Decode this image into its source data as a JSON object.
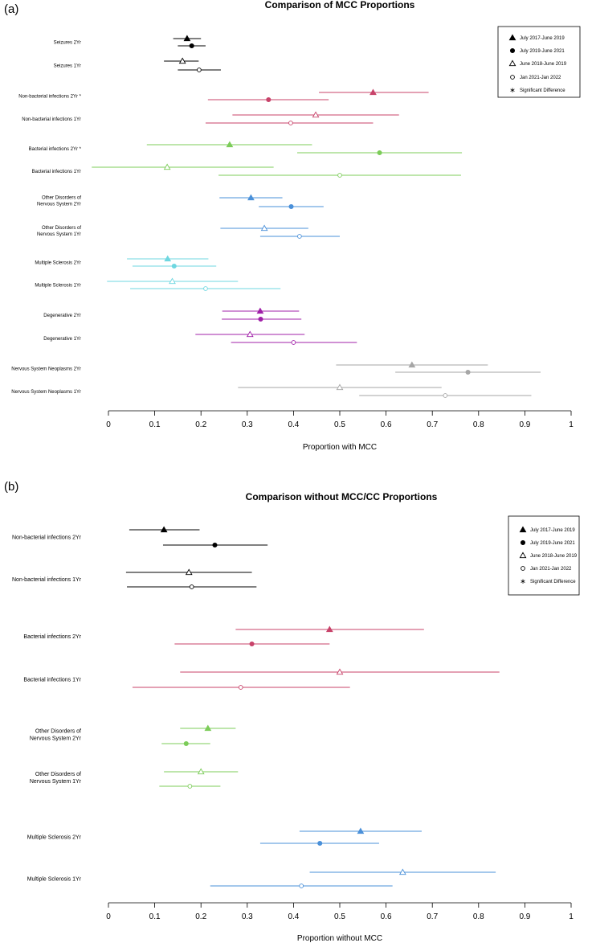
{
  "legend": {
    "entries": [
      {
        "label": "July 2017-June 2019",
        "marker": "filled-triangle"
      },
      {
        "label": "July 2019-June 2021",
        "marker": "filled-circle"
      },
      {
        "label": "June 2018-June 2019",
        "marker": "open-triangle"
      },
      {
        "label": "Jan 2021-Jan 2022",
        "marker": "open-circle"
      },
      {
        "label": "Significant Difference",
        "marker": "asterisk"
      }
    ]
  },
  "chart_data": [
    {
      "panel_label": "(a)",
      "type": "scatter",
      "title": "Comparison of MCC Proportions",
      "xlabel": "Proportion with MCC",
      "xlim": [
        0,
        1
      ],
      "xticks": [
        "0",
        "0.1",
        "0.2",
        "0.3",
        "0.4",
        "0.5",
        "0.6",
        "0.7",
        "0.8",
        "0.9",
        "1"
      ],
      "groups": [
        {
          "name": "Seizures",
          "color": "#000000",
          "rows": [
            {
              "label": "Seizures 2Yr",
              "points": [
                {
                  "series": "July 2017-June 2019",
                  "marker": "filled-triangle",
                  "estimate": 0.17,
                  "ci": [
                    0.14,
                    0.2
                  ]
                },
                {
                  "series": "July 2019-June 2021",
                  "marker": "filled-circle",
                  "estimate": 0.18,
                  "ci": [
                    0.15,
                    0.21
                  ]
                }
              ]
            },
            {
              "label": "Seizures 1Yr",
              "points": [
                {
                  "series": "June 2018-June 2019",
                  "marker": "open-triangle",
                  "estimate": 0.16,
                  "ci": [
                    0.12,
                    0.195
                  ]
                },
                {
                  "series": "Jan 2021-Jan 2022",
                  "marker": "open-circle",
                  "estimate": 0.196,
                  "ci": [
                    0.15,
                    0.243
                  ]
                }
              ]
            }
          ]
        },
        {
          "name": "Non-bacterial infections",
          "color": "#c8436a",
          "rows": [
            {
              "label": "Non-bacterial infections 2Yr *",
              "points": [
                {
                  "series": "July 2017-June 2019",
                  "marker": "filled-triangle",
                  "estimate": 0.572,
                  "ci": [
                    0.455,
                    0.692
                  ]
                },
                {
                  "series": "July 2019-June 2021",
                  "marker": "filled-circle",
                  "estimate": 0.346,
                  "ci": [
                    0.215,
                    0.476
                  ]
                }
              ]
            },
            {
              "label": "Non-bacterial infections 1Yr",
              "points": [
                {
                  "series": "June 2018-June 2019",
                  "marker": "open-triangle",
                  "estimate": 0.448,
                  "ci": [
                    0.268,
                    0.628
                  ]
                },
                {
                  "series": "Jan 2021-Jan 2022",
                  "marker": "open-circle",
                  "estimate": 0.394,
                  "ci": [
                    0.21,
                    0.572
                  ]
                }
              ]
            }
          ]
        },
        {
          "name": "Bacterial infections",
          "color": "#7ccc59",
          "rows": [
            {
              "label": "Bacterial infections 2Yr *",
              "points": [
                {
                  "series": "July 2017-June 2019",
                  "marker": "filled-triangle",
                  "estimate": 0.262,
                  "ci": [
                    0.083,
                    0.44
                  ]
                },
                {
                  "series": "July 2019-June 2021",
                  "marker": "filled-circle",
                  "estimate": 0.586,
                  "ci": [
                    0.408,
                    0.764
                  ]
                }
              ]
            },
            {
              "label": "Bacterial infections 1Yr",
              "points": [
                {
                  "series": "June 2018-June 2019",
                  "marker": "open-triangle",
                  "estimate": 0.127,
                  "ci": [
                    -0.036,
                    0.357
                  ]
                },
                {
                  "series": "Jan 2021-Jan 2022",
                  "marker": "open-circle",
                  "estimate": 0.5,
                  "ci": [
                    0.238,
                    0.762
                  ]
                }
              ]
            }
          ]
        },
        {
          "name": "Other Disorders of Nervous System",
          "color": "#4a90d9",
          "rows": [
            {
              "label": "Other Disorders of Nervous System 2Yr",
              "points": [
                {
                  "series": "July 2017-June 2019",
                  "marker": "filled-triangle",
                  "estimate": 0.308,
                  "ci": [
                    0.24,
                    0.376
                  ]
                },
                {
                  "series": "July 2019-June 2021",
                  "marker": "filled-circle",
                  "estimate": 0.395,
                  "ci": [
                    0.325,
                    0.465
                  ]
                }
              ]
            },
            {
              "label": "Other Disorders of Nervous System 1Yr",
              "points": [
                {
                  "series": "June 2018-June 2019",
                  "marker": "open-triangle",
                  "estimate": 0.337,
                  "ci": [
                    0.242,
                    0.432
                  ]
                },
                {
                  "series": "Jan 2021-Jan 2022",
                  "marker": "open-circle",
                  "estimate": 0.413,
                  "ci": [
                    0.328,
                    0.5
                  ]
                }
              ]
            }
          ]
        },
        {
          "name": "Multiple Sclerosis",
          "color": "#6fd7e0",
          "rows": [
            {
              "label": "Multiple Sclerosis 2Yr",
              "points": [
                {
                  "series": "July 2017-June 2019",
                  "marker": "filled-triangle",
                  "estimate": 0.128,
                  "ci": [
                    0.04,
                    0.216
                  ]
                },
                {
                  "series": "July 2019-June 2021",
                  "marker": "filled-circle",
                  "estimate": 0.142,
                  "ci": [
                    0.052,
                    0.233
                  ]
                }
              ]
            },
            {
              "label": "Multiple Sclerosis 1Yr",
              "points": [
                {
                  "series": "June 2018-June 2019",
                  "marker": "open-triangle",
                  "estimate": 0.138,
                  "ci": [
                    -0.003,
                    0.28
                  ]
                },
                {
                  "series": "Jan 2021-Jan 2022",
                  "marker": "open-circle",
                  "estimate": 0.21,
                  "ci": [
                    0.047,
                    0.372
                  ]
                }
              ]
            }
          ]
        },
        {
          "name": "Degenerative",
          "color": "#a020a8",
          "rows": [
            {
              "label": "Degenerative 2Yr",
              "points": [
                {
                  "series": "July 2017-June 2019",
                  "marker": "filled-triangle",
                  "estimate": 0.328,
                  "ci": [
                    0.246,
                    0.412
                  ]
                },
                {
                  "series": "July 2019-June 2021",
                  "marker": "filled-circle",
                  "estimate": 0.329,
                  "ci": [
                    0.245,
                    0.417
                  ]
                }
              ]
            },
            {
              "label": "Degenerative 1Yr",
              "points": [
                {
                  "series": "June 2018-June 2019",
                  "marker": "open-triangle",
                  "estimate": 0.306,
                  "ci": [
                    0.188,
                    0.424
                  ]
                },
                {
                  "series": "Jan 2021-Jan 2022",
                  "marker": "open-circle",
                  "estimate": 0.4,
                  "ci": [
                    0.265,
                    0.537
                  ]
                }
              ]
            }
          ]
        },
        {
          "name": "Nervous System Neoplasms",
          "color": "#a6a6a6",
          "rows": [
            {
              "label": "Nervous System Neoplasms 2Yr",
              "points": [
                {
                  "series": "July 2017-June 2019",
                  "marker": "filled-triangle",
                  "estimate": 0.656,
                  "ci": [
                    0.492,
                    0.82
                  ]
                },
                {
                  "series": "July 2019-June 2021",
                  "marker": "filled-circle",
                  "estimate": 0.777,
                  "ci": [
                    0.62,
                    0.934
                  ]
                }
              ]
            },
            {
              "label": "Nervous System Neoplasms 1Yr",
              "points": [
                {
                  "series": "June 2018-June 2019",
                  "marker": "open-triangle",
                  "estimate": 0.5,
                  "ci": [
                    0.28,
                    0.72
                  ]
                },
                {
                  "series": "Jan 2021-Jan 2022",
                  "marker": "open-circle",
                  "estimate": 0.728,
                  "ci": [
                    0.542,
                    0.914
                  ]
                }
              ]
            }
          ]
        }
      ]
    },
    {
      "panel_label": "(b)",
      "type": "scatter",
      "title": "Comparison without MCC/CC Proportions",
      "xlabel": "Proportion without MCC",
      "xlim": [
        0,
        1
      ],
      "xticks": [
        "0",
        "0.1",
        "0.2",
        "0.3",
        "0.4",
        "0.5",
        "0.6",
        "0.7",
        "0.8",
        "0.9",
        "1"
      ],
      "groups": [
        {
          "name": "Non-bacterial infections",
          "color": "#000000",
          "rows": [
            {
              "label": "Non-bacterial infections 2Yr",
              "points": [
                {
                  "series": "July 2017-June 2019",
                  "marker": "filled-triangle",
                  "estimate": 0.12,
                  "ci": [
                    0.045,
                    0.197
                  ]
                },
                {
                  "series": "July 2019-June 2021",
                  "marker": "filled-circle",
                  "estimate": 0.23,
                  "ci": [
                    0.118,
                    0.344
                  ]
                }
              ]
            },
            {
              "label": "Non-bacterial infections 1Yr",
              "points": [
                {
                  "series": "June 2018-June 2019",
                  "marker": "open-triangle",
                  "estimate": 0.174,
                  "ci": [
                    0.038,
                    0.31
                  ]
                },
                {
                  "series": "Jan 2021-Jan 2022",
                  "marker": "open-circle",
                  "estimate": 0.18,
                  "ci": [
                    0.04,
                    0.32
                  ]
                }
              ]
            }
          ]
        },
        {
          "name": "Bacterial infections",
          "color": "#c8436a",
          "rows": [
            {
              "label": "Bacterial infections 2Yr",
              "points": [
                {
                  "series": "July 2017-June 2019",
                  "marker": "filled-triangle",
                  "estimate": 0.478,
                  "ci": [
                    0.275,
                    0.682
                  ]
                },
                {
                  "series": "July 2019-June 2021",
                  "marker": "filled-circle",
                  "estimate": 0.31,
                  "ci": [
                    0.143,
                    0.478
                  ]
                }
              ]
            },
            {
              "label": "Bacterial infections 1Yr",
              "points": [
                {
                  "series": "June 2018-June 2019",
                  "marker": "open-triangle",
                  "estimate": 0.5,
                  "ci": [
                    0.155,
                    0.845
                  ]
                },
                {
                  "series": "Jan 2021-Jan 2022",
                  "marker": "open-circle",
                  "estimate": 0.286,
                  "ci": [
                    0.052,
                    0.522
                  ]
                }
              ]
            }
          ]
        },
        {
          "name": "Other Disorders of Nervous System",
          "color": "#7ccc59",
          "rows": [
            {
              "label": "Other Disorders of Nervous System 2Yr",
              "points": [
                {
                  "series": "July 2017-June 2019",
                  "marker": "filled-triangle",
                  "estimate": 0.215,
                  "ci": [
                    0.155,
                    0.275
                  ]
                },
                {
                  "series": "July 2019-June 2021",
                  "marker": "filled-circle",
                  "estimate": 0.168,
                  "ci": [
                    0.115,
                    0.22
                  ]
                }
              ]
            },
            {
              "label": "Other Disorders of Nervous System 1Yr",
              "points": [
                {
                  "series": "June 2018-June 2019",
                  "marker": "open-triangle",
                  "estimate": 0.2,
                  "ci": [
                    0.12,
                    0.28
                  ]
                },
                {
                  "series": "Jan 2021-Jan 2022",
                  "marker": "open-circle",
                  "estimate": 0.176,
                  "ci": [
                    0.11,
                    0.242
                  ]
                }
              ]
            }
          ]
        },
        {
          "name": "Multiple Sclerosis",
          "color": "#4a90d9",
          "rows": [
            {
              "label": "Multiple Sclerosis 2Yr",
              "points": [
                {
                  "series": "July 2017-June 2019",
                  "marker": "filled-triangle",
                  "estimate": 0.545,
                  "ci": [
                    0.413,
                    0.677
                  ]
                },
                {
                  "series": "July 2019-June 2021",
                  "marker": "filled-circle",
                  "estimate": 0.457,
                  "ci": [
                    0.328,
                    0.585
                  ]
                }
              ]
            },
            {
              "label": "Multiple Sclerosis 1Yr",
              "points": [
                {
                  "series": "June 2018-June 2019",
                  "marker": "open-triangle",
                  "estimate": 0.636,
                  "ci": [
                    0.435,
                    0.837
                  ]
                },
                {
                  "series": "Jan 2021-Jan 2022",
                  "marker": "open-circle",
                  "estimate": 0.417,
                  "ci": [
                    0.22,
                    0.614
                  ]
                }
              ]
            }
          ]
        }
      ]
    }
  ]
}
